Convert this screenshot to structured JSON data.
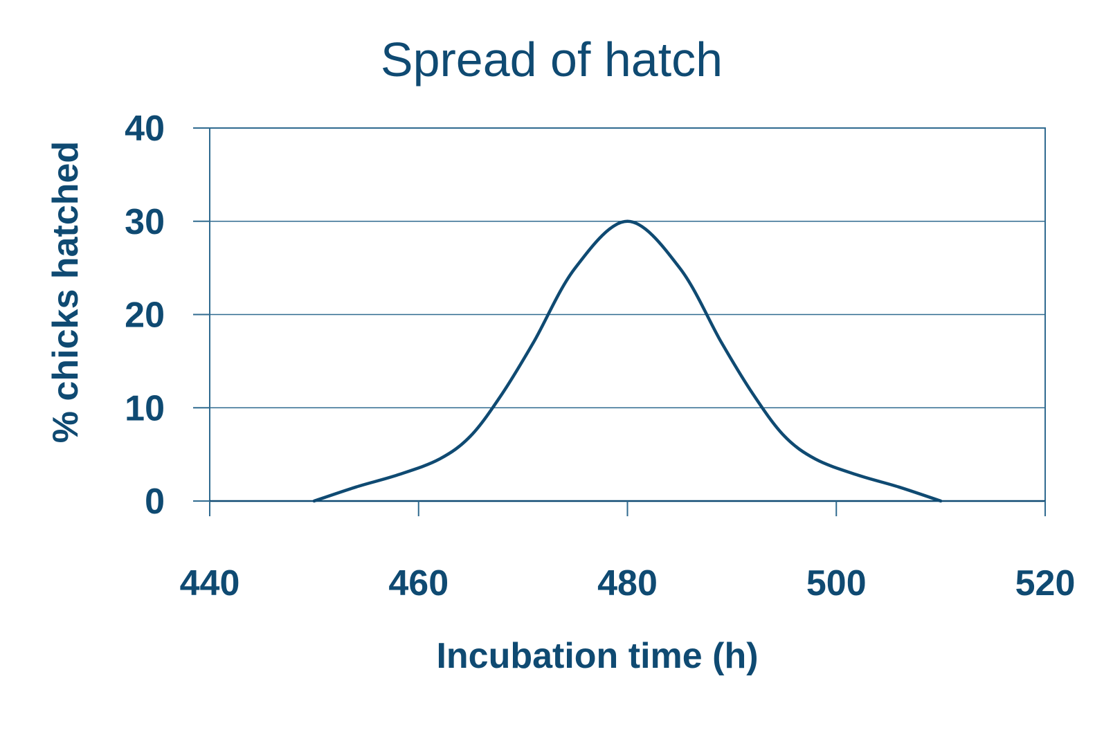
{
  "chart_data": {
    "type": "line",
    "title": "Spread of hatch",
    "xlabel": "Incubation time (h)",
    "ylabel": "% chicks hatched",
    "xlim": [
      440,
      520
    ],
    "ylim": [
      0,
      40
    ],
    "x_ticks": [
      440,
      460,
      480,
      500,
      520
    ],
    "y_ticks": [
      0,
      10,
      20,
      30,
      40
    ],
    "grid": "horizontal",
    "smooth": true,
    "series": [
      {
        "x": [
          450,
          454,
          458,
          462,
          465,
          468,
          471,
          475,
          480,
          485,
          489,
          492,
          495,
          498,
          502,
          506,
          510
        ],
        "y": [
          0,
          1.5,
          2.8,
          4.5,
          7,
          11.5,
          17,
          25,
          30,
          25,
          17,
          11.5,
          7,
          4.5,
          2.8,
          1.5,
          0
        ]
      }
    ],
    "colors": {
      "line": "#0f4a72",
      "grid": "#2f6a8f",
      "text": "#0f4a72"
    }
  }
}
